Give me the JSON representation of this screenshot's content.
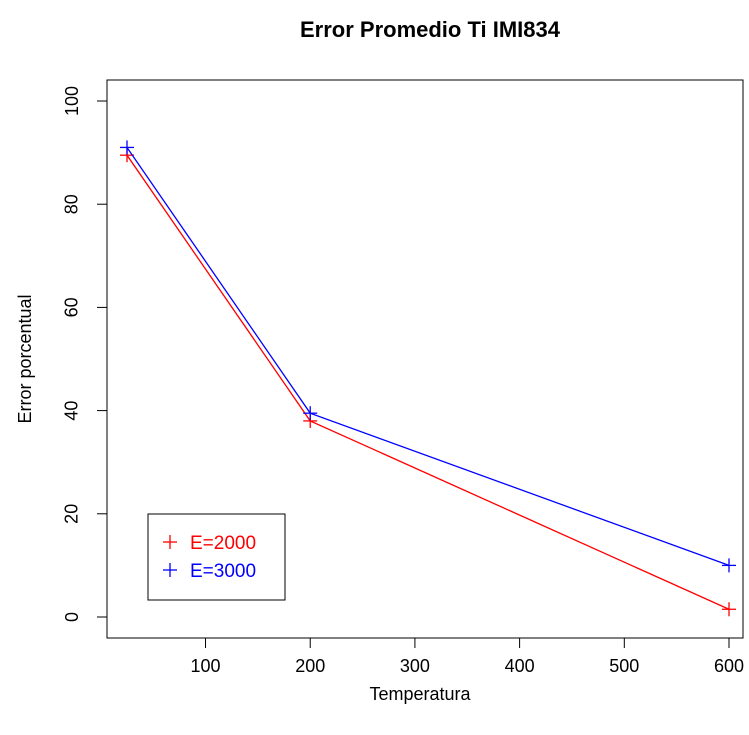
{
  "chart_data": {
    "type": "line",
    "title": "Error Promedio Ti IMI834",
    "xlabel": "Temperatura",
    "ylabel": "Error porcentual",
    "x": [
      25,
      200,
      600
    ],
    "xlim": [
      25,
      600
    ],
    "ylim": [
      0,
      100
    ],
    "xticks": [
      100,
      200,
      300,
      400,
      500,
      600
    ],
    "yticks": [
      0,
      20,
      40,
      60,
      80,
      100
    ],
    "grid": false,
    "legend_position": "bottom-left",
    "series": [
      {
        "name": "E=2000",
        "color": "#ff0000",
        "marker": "+",
        "values": [
          89.5,
          38,
          1.5
        ]
      },
      {
        "name": "E=3000",
        "color": "#0000ff",
        "marker": "+",
        "values": [
          91,
          39.5,
          10
        ]
      }
    ]
  }
}
